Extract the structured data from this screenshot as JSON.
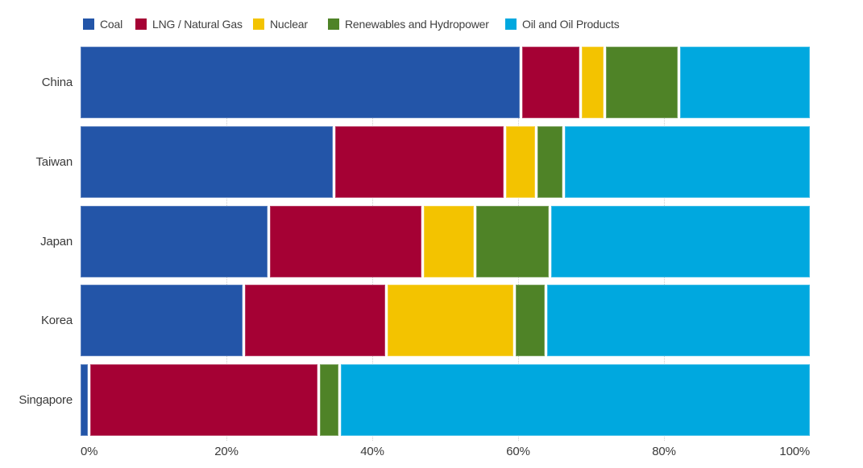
{
  "legend": {
    "position": "top",
    "items": [
      {
        "label": "Coal",
        "color": "#2355A8"
      },
      {
        "label": "LNG / Natural Gas",
        "color": "#A50134"
      },
      {
        "label": "Nuclear",
        "color": "#F3C300"
      },
      {
        "label": "Renewables and Hydropower",
        "color": "#4F8327"
      },
      {
        "label": "Oil and Oil Products",
        "color": "#00A8DF"
      }
    ]
  },
  "chart_data": {
    "type": "bar",
    "orientation": "horizontal",
    "stacked": true,
    "unit": "percent",
    "title": "",
    "xlabel": "",
    "ylabel": "",
    "categories": [
      "China",
      "Taiwan",
      "Japan",
      "Korea",
      "Singapore"
    ],
    "series": [
      {
        "name": "Coal",
        "color": "#2355A8",
        "values": [
          61,
          35,
          26,
          22.5,
          1
        ]
      },
      {
        "name": "LNG / Natural Gas",
        "color": "#A50134",
        "values": [
          8,
          23.5,
          21,
          19.5,
          31.5
        ]
      },
      {
        "name": "Nuclear",
        "color": "#F3C300",
        "values": [
          3,
          4,
          7,
          17.5,
          0
        ]
      },
      {
        "name": "Renewables and Hydropower",
        "color": "#4F8327",
        "values": [
          10,
          3.5,
          10,
          4,
          2.5
        ]
      },
      {
        "name": "Oil and Oil Products",
        "color": "#00A8DF",
        "values": [
          18,
          34,
          36,
          36.5,
          65
        ]
      }
    ],
    "x_axis": {
      "min": 0,
      "max": 100,
      "tick_labels": [
        "0%",
        "20%",
        "40%",
        "60%",
        "80%",
        "100%"
      ],
      "tick_values": [
        0,
        20,
        40,
        60,
        80,
        100
      ]
    },
    "gridlines": {
      "show": true,
      "style": "dotted",
      "values": [
        20,
        40,
        60,
        80
      ]
    },
    "legend_position": "top"
  }
}
